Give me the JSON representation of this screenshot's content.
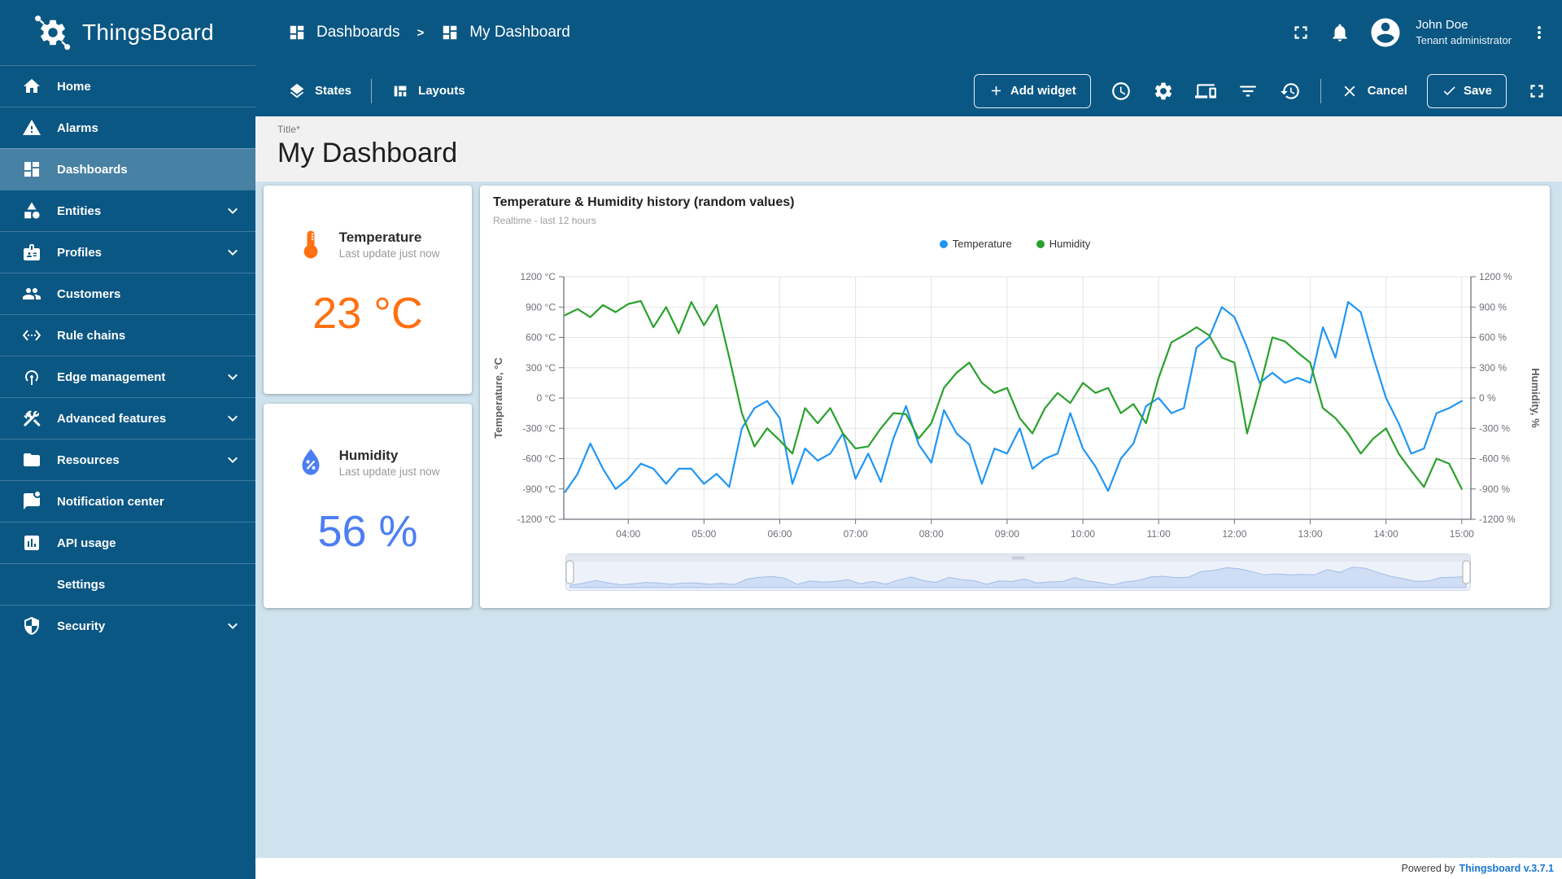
{
  "app": {
    "title": "ThingsBoard"
  },
  "topbar": {
    "breadcrumb": [
      {
        "label": "Dashboards"
      },
      {
        "label": "My Dashboard"
      }
    ],
    "separator": ">",
    "user": {
      "name": "John Doe",
      "role": "Tenant administrator"
    }
  },
  "sidebar": {
    "items": [
      {
        "label": "Home",
        "icon": "home",
        "active": false,
        "expandable": false
      },
      {
        "label": "Alarms",
        "icon": "alarms",
        "active": false,
        "expandable": false
      },
      {
        "label": "Dashboards",
        "icon": "dashboards",
        "active": true,
        "expandable": false
      },
      {
        "label": "Entities",
        "icon": "entities",
        "active": false,
        "expandable": true
      },
      {
        "label": "Profiles",
        "icon": "profiles",
        "active": false,
        "expandable": true
      },
      {
        "label": "Customers",
        "icon": "customers",
        "active": false,
        "expandable": false
      },
      {
        "label": "Rule chains",
        "icon": "rule-chains",
        "active": false,
        "expandable": false
      },
      {
        "label": "Edge management",
        "icon": "edge-management",
        "active": false,
        "expandable": true
      },
      {
        "label": "Advanced features",
        "icon": "advanced-features",
        "active": false,
        "expandable": true
      },
      {
        "label": "Resources",
        "icon": "resources",
        "active": false,
        "expandable": true
      },
      {
        "label": "Notification center",
        "icon": "notification-center",
        "active": false,
        "expandable": false
      },
      {
        "label": "API usage",
        "icon": "api-usage",
        "active": false,
        "expandable": false
      },
      {
        "label": "Settings",
        "icon": "settings",
        "active": false,
        "expandable": false
      },
      {
        "label": "Security",
        "icon": "security",
        "active": false,
        "expandable": true
      }
    ]
  },
  "toolbar": {
    "states_label": "States",
    "layouts_label": "Layouts",
    "add_widget_label": "Add widget",
    "cancel_label": "Cancel",
    "save_label": "Save",
    "icon_buttons": [
      {
        "name": "timewindow",
        "icon": "clock"
      },
      {
        "name": "dashboard-settings",
        "icon": "gear"
      },
      {
        "name": "manage-layouts",
        "icon": "devices"
      },
      {
        "name": "entity-aliases",
        "icon": "filter"
      },
      {
        "name": "version-control",
        "icon": "history"
      }
    ]
  },
  "title_block": {
    "label": "Title*",
    "value": "My Dashboard"
  },
  "widgets": {
    "temperature": {
      "title": "Temperature",
      "subtitle": "Last update just now",
      "value": "23 °C",
      "color": "#ff7011"
    },
    "humidity": {
      "title": "Humidity",
      "subtitle": "Last update just now",
      "value": "56 %",
      "color": "#4c7ef3"
    }
  },
  "chart_data": {
    "type": "line",
    "title": "Temperature & Humidity history (random values)",
    "subtitle": "Realtime - last 12 hours",
    "ylim": [
      -1200,
      1200
    ],
    "y_tick_step": 300,
    "y_left_unit": "°C",
    "y_right_unit": "%",
    "y_left_label": "Temperature, °C",
    "y_right_label": "Humidity, %",
    "x_range": [
      3.15,
      15.12
    ],
    "x_start_hour": 3.1667,
    "x_interval_minutes": 10,
    "x_tick_labels": [
      "04:00",
      "05:00",
      "06:00",
      "07:00",
      "08:00",
      "09:00",
      "10:00",
      "11:00",
      "12:00",
      "13:00",
      "14:00",
      "15:00"
    ],
    "grid": true,
    "legend_position": "top",
    "series": [
      {
        "name": "Temperature",
        "color": "#2196f3",
        "values": [
          -930,
          -750,
          -450,
          -700,
          -900,
          -800,
          -650,
          -700,
          -850,
          -700,
          -700,
          -850,
          -750,
          -880,
          -300,
          -100,
          -30,
          -200,
          -850,
          -500,
          -620,
          -550,
          -350,
          -800,
          -550,
          -830,
          -400,
          -80,
          -460,
          -640,
          -120,
          -350,
          -460,
          -850,
          -500,
          -550,
          -300,
          -700,
          -600,
          -550,
          -150,
          -500,
          -680,
          -920,
          -600,
          -450,
          -80,
          0,
          -150,
          -100,
          500,
          600,
          900,
          800,
          500,
          150,
          250,
          150,
          200,
          150,
          700,
          400,
          950,
          850,
          400,
          0,
          -250,
          -550,
          -500,
          -150,
          -100,
          -30
        ]
      },
      {
        "name": "Humidity",
        "color": "#2aa12c",
        "values": [
          820,
          880,
          800,
          920,
          850,
          930,
          960,
          700,
          900,
          640,
          950,
          720,
          920,
          400,
          -150,
          -480,
          -300,
          -420,
          -550,
          -100,
          -250,
          -100,
          -350,
          -500,
          -480,
          -300,
          -150,
          -160,
          -400,
          -250,
          100,
          250,
          350,
          150,
          50,
          100,
          -200,
          -350,
          -100,
          50,
          -50,
          150,
          50,
          100,
          -150,
          -60,
          -250,
          200,
          550,
          620,
          700,
          620,
          400,
          350,
          -350,
          100,
          600,
          560,
          450,
          350,
          -100,
          -200,
          -350,
          -550,
          -400,
          -300,
          -550,
          -720,
          -880,
          -600,
          -650,
          -900
        ]
      }
    ]
  },
  "footer": {
    "powered_by": "Powered by",
    "link": "Thingsboard v.3.7.1"
  }
}
